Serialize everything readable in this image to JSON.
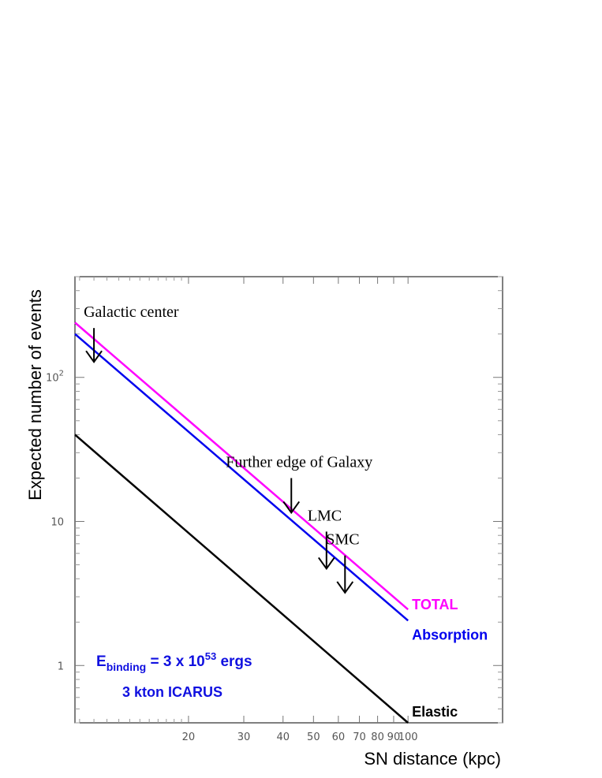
{
  "chart_data": {
    "type": "line",
    "xlabel": "SN distance (kpc)",
    "ylabel": "Expected number of events",
    "xscale": "log",
    "yscale": "log",
    "xlim": [
      8.7,
      200
    ],
    "ylim": [
      0.4,
      500
    ],
    "x_ticks": [
      {
        "value": 20,
        "label": "20"
      },
      {
        "value": 30,
        "label": "30"
      },
      {
        "value": 40,
        "label": "40"
      },
      {
        "value": 50,
        "label": "50"
      },
      {
        "value": 60,
        "label": "60"
      },
      {
        "value": 70,
        "label": "70"
      },
      {
        "value": 80,
        "label": "80"
      },
      {
        "value": 90,
        "label": "90"
      },
      {
        "value": 100,
        "label": "100"
      }
    ],
    "y_ticks": [
      {
        "value": 1,
        "label": "1"
      },
      {
        "value": 10,
        "label": "10"
      },
      {
        "value": 100,
        "label": "10",
        "sup": "2"
      }
    ],
    "series": [
      {
        "name": "TOTAL",
        "color": "#ff00ff",
        "x": [
          8.7,
          100
        ],
        "y": [
          240,
          2.45
        ]
      },
      {
        "name": "Absorption",
        "color": "#0000ee",
        "x": [
          8.7,
          100
        ],
        "y": [
          200,
          2.05
        ]
      },
      {
        "name": "Elastic",
        "color": "#000000",
        "x": [
          8.7,
          100
        ],
        "y": [
          40,
          0.4
        ]
      }
    ],
    "annotations": [
      {
        "text": "Galactic center",
        "x": 10,
        "arrow_from_y": 220,
        "arrow_to_y": 128
      },
      {
        "text": "Further edge of Galaxy",
        "x": 42.5,
        "arrow_from_y": 20,
        "arrow_to_y": 11.5
      },
      {
        "text": "LMC",
        "x": 55,
        "arrow_from_y": 8.5,
        "arrow_to_y": 4.7
      },
      {
        "text": "SMC",
        "x": 63,
        "arrow_from_y": 5.8,
        "arrow_to_y": 3.2
      }
    ],
    "info_text": {
      "binding_main": "E",
      "binding_sub": "binding",
      "binding_eq": " = 3 x 10",
      "binding_exp": "53",
      "binding_unit": " ergs",
      "detector": "3 kton ICARUS"
    }
  }
}
